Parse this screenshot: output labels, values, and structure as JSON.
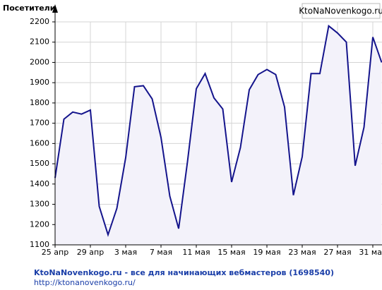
{
  "chart_data": {
    "type": "line",
    "y_label": "Посетители",
    "watermark": "KtoNaNovenkogo.ru",
    "footer_title": "KtoNaNovenkogo.ru - все для начинающих вебмастеров (1698540)",
    "footer_url": "http://ktonanovenkogo.ru/",
    "categories": [
      "25 апр",
      null,
      null,
      null,
      "29 апр",
      null,
      null,
      null,
      "3 мая",
      null,
      null,
      null,
      "7 мая",
      null,
      null,
      null,
      "11 мая",
      null,
      null,
      null,
      "15 мая",
      null,
      null,
      null,
      "19 мая",
      null,
      null,
      null,
      "23 мая",
      null,
      null,
      null,
      "27 мая",
      null,
      null,
      null,
      "31 мая",
      null
    ],
    "series": [
      {
        "name": "Посетители",
        "color": "#14148c",
        "values": [
          1430,
          1720,
          1755,
          1745,
          1765,
          1290,
          1150,
          1280,
          1530,
          1880,
          1885,
          1820,
          1630,
          1340,
          1180,
          1510,
          1870,
          1945,
          1825,
          1770,
          1410,
          1580,
          1865,
          1940,
          1965,
          1940,
          1780,
          1345,
          1535,
          1945,
          1945,
          2180,
          2145,
          2100,
          1490,
          1680,
          2125,
          2000
        ]
      }
    ],
    "ylim": [
      1100,
      2200
    ],
    "yticks": [
      1100,
      1200,
      1300,
      1400,
      1500,
      1600,
      1700,
      1800,
      1900,
      2000,
      2100,
      2200
    ],
    "grid": true,
    "fill_color": "#f3f2fa"
  }
}
